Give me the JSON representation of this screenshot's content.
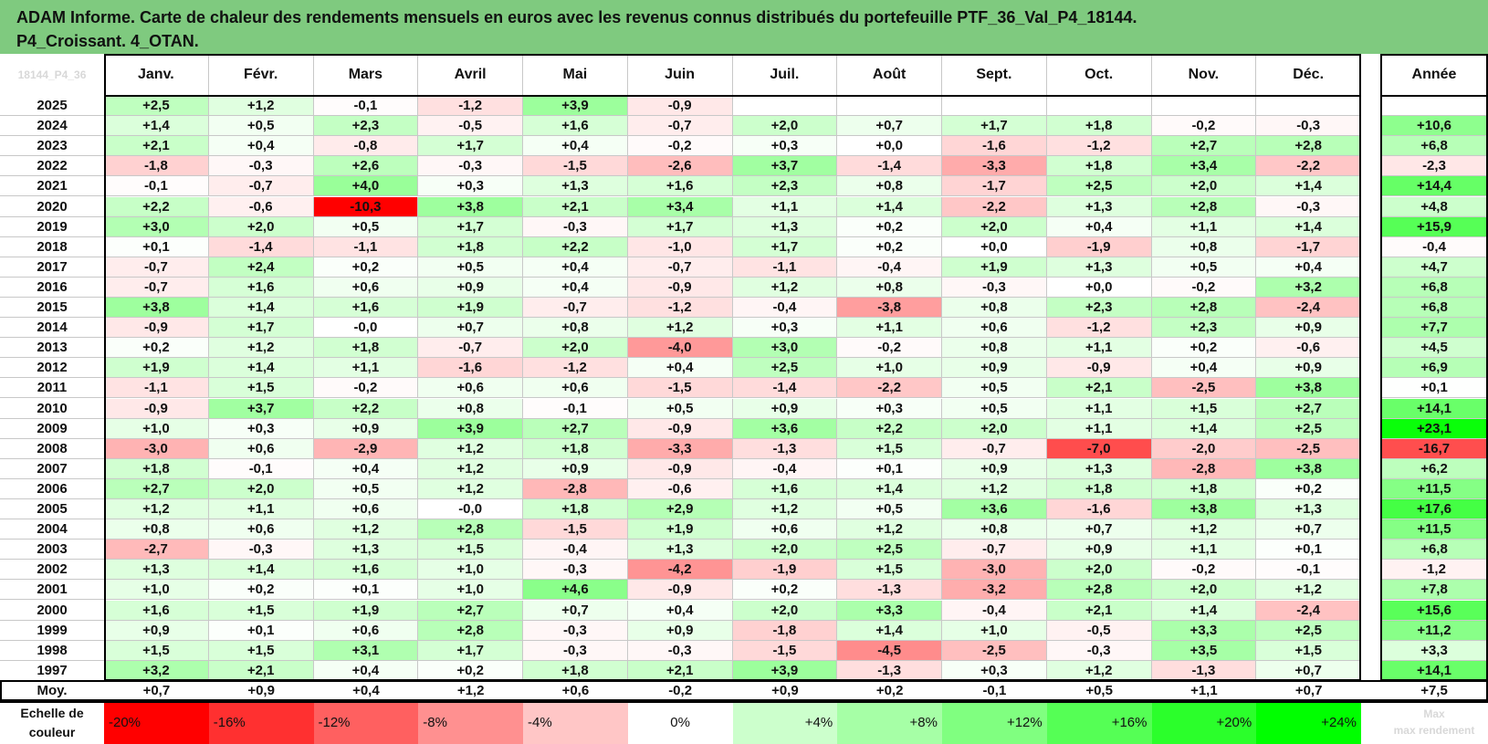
{
  "title_lines": [
    "ADAM Informe. Carte de chaleur des rendements mensuels en euros avec les revenus connus distribués du portefeuille PTF_36_Val_P4_18144.",
    "P4_Croissant. 4_OTAN."
  ],
  "chart_data": {
    "type": "heatmap",
    "corner_label": "18144_P4_36",
    "columns": [
      "Janv.",
      "Févr.",
      "Mars",
      "Avril",
      "Mai",
      "Juin",
      "Juil.",
      "Août",
      "Sept.",
      "Oct.",
      "Nov.",
      "Déc."
    ],
    "annual_header": "Année",
    "rows": [
      {
        "year": "2025",
        "months": [
          "+2,5",
          "+1,2",
          "-0,1",
          "-1,2",
          "+3,9",
          "-0,9",
          "",
          "",
          "",
          "",
          "",
          ""
        ],
        "annual": ""
      },
      {
        "year": "2024",
        "months": [
          "+1,4",
          "+0,5",
          "+2,3",
          "-0,5",
          "+1,6",
          "-0,7",
          "+2,0",
          "+0,7",
          "+1,7",
          "+1,8",
          "-0,2",
          "-0,3"
        ],
        "annual": "+10,6"
      },
      {
        "year": "2023",
        "months": [
          "+2,1",
          "+0,4",
          "-0,8",
          "+1,7",
          "+0,4",
          "-0,2",
          "+0,3",
          "+0,0",
          "-1,6",
          "-1,2",
          "+2,7",
          "+2,8"
        ],
        "annual": "+6,8"
      },
      {
        "year": "2022",
        "months": [
          "-1,8",
          "-0,3",
          "+2,6",
          "-0,3",
          "-1,5",
          "-2,6",
          "+3,7",
          "-1,4",
          "-3,3",
          "+1,8",
          "+3,4",
          "-2,2"
        ],
        "annual": "-2,3"
      },
      {
        "year": "2021",
        "months": [
          "-0,1",
          "-0,7",
          "+4,0",
          "+0,3",
          "+1,3",
          "+1,6",
          "+2,3",
          "+0,8",
          "-1,7",
          "+2,5",
          "+2,0",
          "+1,4"
        ],
        "annual": "+14,4"
      },
      {
        "year": "2020",
        "months": [
          "+2,2",
          "-0,6",
          "-10,3",
          "+3,8",
          "+2,1",
          "+3,4",
          "+1,1",
          "+1,4",
          "-2,2",
          "+1,3",
          "+2,8",
          "-0,3"
        ],
        "annual": "+4,8"
      },
      {
        "year": "2019",
        "months": [
          "+3,0",
          "+2,0",
          "+0,5",
          "+1,7",
          "-0,3",
          "+1,7",
          "+1,3",
          "+0,2",
          "+2,0",
          "+0,4",
          "+1,1",
          "+1,4"
        ],
        "annual": "+15,9"
      },
      {
        "year": "2018",
        "months": [
          "+0,1",
          "-1,4",
          "-1,1",
          "+1,8",
          "+2,2",
          "-1,0",
          "+1,7",
          "+0,2",
          "+0,0",
          "-1,9",
          "+0,8",
          "-1,7"
        ],
        "annual": "-0,4"
      },
      {
        "year": "2017",
        "months": [
          "-0,7",
          "+2,4",
          "+0,2",
          "+0,5",
          "+0,4",
          "-0,7",
          "-1,1",
          "-0,4",
          "+1,9",
          "+1,3",
          "+0,5",
          "+0,4"
        ],
        "annual": "+4,7"
      },
      {
        "year": "2016",
        "months": [
          "-0,7",
          "+1,6",
          "+0,6",
          "+0,9",
          "+0,4",
          "-0,9",
          "+1,2",
          "+0,8",
          "-0,3",
          "+0,0",
          "-0,2",
          "+3,2"
        ],
        "annual": "+6,8"
      },
      {
        "year": "2015",
        "months": [
          "+3,8",
          "+1,4",
          "+1,6",
          "+1,9",
          "-0,7",
          "-1,2",
          "-0,4",
          "-3,8",
          "+0,8",
          "+2,3",
          "+2,8",
          "-2,4"
        ],
        "annual": "+6,8"
      },
      {
        "year": "2014",
        "months": [
          "-0,9",
          "+1,7",
          "-0,0",
          "+0,7",
          "+0,8",
          "+1,2",
          "+0,3",
          "+1,1",
          "+0,6",
          "-1,2",
          "+2,3",
          "+0,9"
        ],
        "annual": "+7,7"
      },
      {
        "year": "2013",
        "months": [
          "+0,2",
          "+1,2",
          "+1,8",
          "-0,7",
          "+2,0",
          "-4,0",
          "+3,0",
          "-0,2",
          "+0,8",
          "+1,1",
          "+0,2",
          "-0,6"
        ],
        "annual": "+4,5"
      },
      {
        "year": "2012",
        "months": [
          "+1,9",
          "+1,4",
          "+1,1",
          "-1,6",
          "-1,2",
          "+0,4",
          "+2,5",
          "+1,0",
          "+0,9",
          "-0,9",
          "+0,4",
          "+0,9"
        ],
        "annual": "+6,9"
      },
      {
        "year": "2011",
        "months": [
          "-1,1",
          "+1,5",
          "-0,2",
          "+0,6",
          "+0,6",
          "-1,5",
          "-1,4",
          "-2,2",
          "+0,5",
          "+2,1",
          "-2,5",
          "+3,8"
        ],
        "annual": "+0,1"
      },
      {
        "year": "2010",
        "months": [
          "-0,9",
          "+3,7",
          "+2,2",
          "+0,8",
          "-0,1",
          "+0,5",
          "+0,9",
          "+0,3",
          "+0,5",
          "+1,1",
          "+1,5",
          "+2,7"
        ],
        "annual": "+14,1"
      },
      {
        "year": "2009",
        "months": [
          "+1,0",
          "+0,3",
          "+0,9",
          "+3,9",
          "+2,7",
          "-0,9",
          "+3,6",
          "+2,2",
          "+2,0",
          "+1,1",
          "+1,4",
          "+2,5"
        ],
        "annual": "+23,1"
      },
      {
        "year": "2008",
        "months": [
          "-3,0",
          "+0,6",
          "-2,9",
          "+1,2",
          "+1,8",
          "-3,3",
          "-1,3",
          "+1,5",
          "-0,7",
          "-7,0",
          "-2,0",
          "-2,5"
        ],
        "annual": "-16,7"
      },
      {
        "year": "2007",
        "months": [
          "+1,8",
          "-0,1",
          "+0,4",
          "+1,2",
          "+0,9",
          "-0,9",
          "-0,4",
          "+0,1",
          "+0,9",
          "+1,3",
          "-2,8",
          "+3,8"
        ],
        "annual": "+6,2"
      },
      {
        "year": "2006",
        "months": [
          "+2,7",
          "+2,0",
          "+0,5",
          "+1,2",
          "-2,8",
          "-0,6",
          "+1,6",
          "+1,4",
          "+1,2",
          "+1,8",
          "+1,8",
          "+0,2"
        ],
        "annual": "+11,5"
      },
      {
        "year": "2005",
        "months": [
          "+1,2",
          "+1,1",
          "+0,6",
          "-0,0",
          "+1,8",
          "+2,9",
          "+1,2",
          "+0,5",
          "+3,6",
          "-1,6",
          "+3,8",
          "+1,3"
        ],
        "annual": "+17,6"
      },
      {
        "year": "2004",
        "months": [
          "+0,8",
          "+0,6",
          "+1,2",
          "+2,8",
          "-1,5",
          "+1,9",
          "+0,6",
          "+1,2",
          "+0,8",
          "+0,7",
          "+1,2",
          "+0,7"
        ],
        "annual": "+11,5"
      },
      {
        "year": "2003",
        "months": [
          "-2,7",
          "-0,3",
          "+1,3",
          "+1,5",
          "-0,4",
          "+1,3",
          "+2,0",
          "+2,5",
          "-0,7",
          "+0,9",
          "+1,1",
          "+0,1"
        ],
        "annual": "+6,8"
      },
      {
        "year": "2002",
        "months": [
          "+1,3",
          "+1,4",
          "+1,6",
          "+1,0",
          "-0,3",
          "-4,2",
          "-1,9",
          "+1,5",
          "-3,0",
          "+2,0",
          "-0,2",
          "-0,1"
        ],
        "annual": "-1,2"
      },
      {
        "year": "2001",
        "months": [
          "+1,0",
          "+0,2",
          "+0,1",
          "+1,0",
          "+4,6",
          "-0,9",
          "+0,2",
          "-1,3",
          "-3,2",
          "+2,8",
          "+2,0",
          "+1,2"
        ],
        "annual": "+7,8"
      },
      {
        "year": "2000",
        "months": [
          "+1,6",
          "+1,5",
          "+1,9",
          "+2,7",
          "+0,7",
          "+0,4",
          "+2,0",
          "+3,3",
          "-0,4",
          "+2,1",
          "+1,4",
          "-2,4"
        ],
        "annual": "+15,6"
      },
      {
        "year": "1999",
        "months": [
          "+0,9",
          "+0,1",
          "+0,6",
          "+2,8",
          "-0,3",
          "+0,9",
          "-1,8",
          "+1,4",
          "+1,0",
          "-0,5",
          "+3,3",
          "+2,5"
        ],
        "annual": "+11,2"
      },
      {
        "year": "1998",
        "months": [
          "+1,5",
          "+1,5",
          "+3,1",
          "+1,7",
          "-0,3",
          "-0,3",
          "-1,5",
          "-4,5",
          "-2,5",
          "-0,3",
          "+3,5",
          "+1,5"
        ],
        "annual": "+3,3"
      },
      {
        "year": "1997",
        "months": [
          "+3,2",
          "+2,1",
          "+0,4",
          "+0,2",
          "+1,8",
          "+2,1",
          "+3,9",
          "-1,3",
          "+0,3",
          "+1,2",
          "-1,3",
          "+0,7"
        ],
        "annual": "+14,1"
      }
    ],
    "average": {
      "label": "Moy.",
      "months": [
        "+0,7",
        "+0,9",
        "+0,4",
        "+1,2",
        "+0,6",
        "-0,2",
        "+0,9",
        "+0,2",
        "-0,1",
        "+0,5",
        "+1,1",
        "+0,7"
      ],
      "annual": "+7,5"
    },
    "scale": {
      "label_lines": [
        "Echelle de",
        "couleur"
      ],
      "stops": [
        {
          "label": "-20%",
          "value": -20,
          "color": "#ff0000"
        },
        {
          "label": "-16%",
          "value": -16,
          "color": "#ff3030"
        },
        {
          "label": "-12%",
          "value": -12,
          "color": "#ff6060"
        },
        {
          "label": "-8%",
          "value": -8,
          "color": "#ff9090"
        },
        {
          "label": "-4%",
          "value": -4,
          "color": "#ffc6c6"
        },
        {
          "label": "0%",
          "value": 0,
          "color": "#ffffff"
        },
        {
          "label": "+4%",
          "value": 4,
          "color": "#ccffcc"
        },
        {
          "label": "+8%",
          "value": 8,
          "color": "#a6ffa6"
        },
        {
          "label": "+12%",
          "value": 12,
          "color": "#80ff80"
        },
        {
          "label": "+16%",
          "value": 16,
          "color": "#55ff55"
        },
        {
          "label": "+20%",
          "value": 20,
          "color": "#2bff2b"
        },
        {
          "label": "+24%",
          "value": 24,
          "color": "#00ff00"
        }
      ],
      "ghost_lines": [
        "Max",
        "max rendement"
      ]
    },
    "color_rule": {
      "positive_full": "#00ff00",
      "negative_full": "#ff0000",
      "monthly_full_at": 10,
      "annual_full_at": 24
    }
  }
}
